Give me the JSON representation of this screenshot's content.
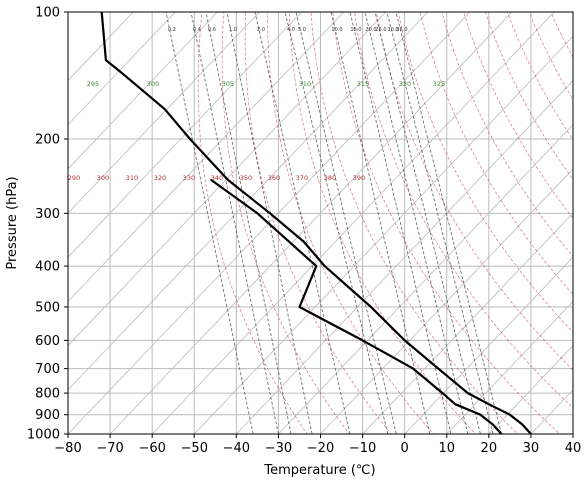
{
  "chart_data": {
    "type": "line",
    "title": "",
    "xlabel": "Temperature (℃)",
    "ylabel": "Pressure (hPa)",
    "xlim": [
      -80,
      40
    ],
    "ylim": [
      1000,
      100
    ],
    "y_scale": "log",
    "x_ticks": [
      -80,
      -70,
      -60,
      -50,
      -40,
      -30,
      -20,
      -10,
      0,
      10,
      20,
      30,
      40
    ],
    "y_ticks": [
      100,
      200,
      300,
      400,
      500,
      600,
      700,
      800,
      900,
      1000
    ],
    "grid": true,
    "skew": true,
    "series": [
      {
        "color": "#000000",
        "points": [
          {
            "p": 1000,
            "t": 30
          },
          {
            "p": 950,
            "t": 28
          },
          {
            "p": 900,
            "t": 25
          },
          {
            "p": 850,
            "t": 20
          },
          {
            "p": 800,
            "t": 15
          },
          {
            "p": 700,
            "t": 8
          },
          {
            "p": 600,
            "t": 0
          },
          {
            "p": 500,
            "t": -8
          },
          {
            "p": 400,
            "t": -19
          },
          {
            "p": 350,
            "t": -24
          },
          {
            "p": 300,
            "t": -32
          },
          {
            "p": 250,
            "t": -42
          },
          {
            "p": 200,
            "t": -51
          },
          {
            "p": 170,
            "t": -57
          },
          {
            "p": 140,
            "t": -67
          },
          {
            "p": 130,
            "t": -71
          },
          {
            "p": 100,
            "t": -72
          }
        ]
      },
      {
        "color": "#000000",
        "points": [
          {
            "p": 1000,
            "t": 23
          },
          {
            "p": 950,
            "t": 21
          },
          {
            "p": 900,
            "t": 18
          },
          {
            "p": 850,
            "t": 12
          },
          {
            "p": 800,
            "t": 9
          },
          {
            "p": 700,
            "t": 2
          },
          {
            "p": 600,
            "t": -10
          },
          {
            "p": 500,
            "t": -25
          },
          {
            "p": 400,
            "t": -21
          },
          {
            "p": 300,
            "t": -35
          },
          {
            "p": 250,
            "t": -46
          }
        ]
      }
    ],
    "dry_adiabat_labels": [
      "290",
      "300",
      "310",
      "320",
      "330",
      "340",
      "350",
      "360",
      "370",
      "380",
      "390"
    ],
    "moist_adiabat_labels": [
      "295",
      "300",
      "305",
      "310",
      "315",
      "320",
      "325"
    ],
    "mixing_ratio_labels": [
      "0.2",
      "0.4",
      "0.6",
      "1.0",
      "2.0",
      "4.0",
      "5.0",
      "10.0",
      "15.0",
      "20.0",
      "25.0",
      "30.0",
      "35.0"
    ],
    "colors": {
      "grid": "#bbbbbb",
      "dry_adiabats": "#cc4444",
      "moist_adiabats": "#4a9a4a",
      "mixing_ratio": "#444444",
      "profile": "#000000"
    }
  }
}
